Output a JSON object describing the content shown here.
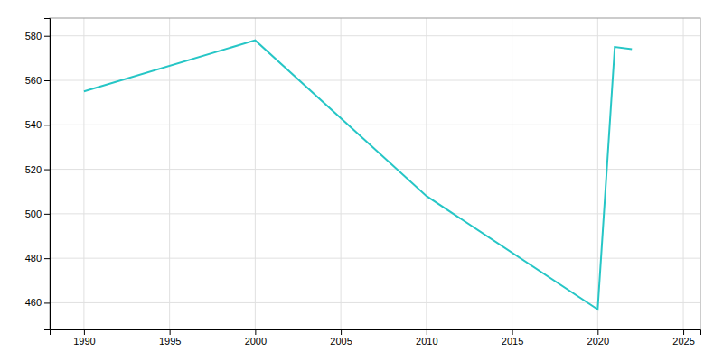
{
  "chart_data": {
    "type": "line",
    "x": [
      1990,
      2000,
      2010,
      2020,
      2021,
      2022
    ],
    "values": [
      555,
      578,
      508,
      457,
      575,
      574
    ],
    "color": "#26C6C6",
    "xlim": [
      1988,
      2026
    ],
    "ylim": [
      448,
      588
    ],
    "xticks": [
      1990,
      1995,
      2000,
      2005,
      2010,
      2015,
      2020,
      2025
    ],
    "yticks": [
      460,
      480,
      500,
      520,
      540,
      560,
      580
    ],
    "grid": true
  }
}
